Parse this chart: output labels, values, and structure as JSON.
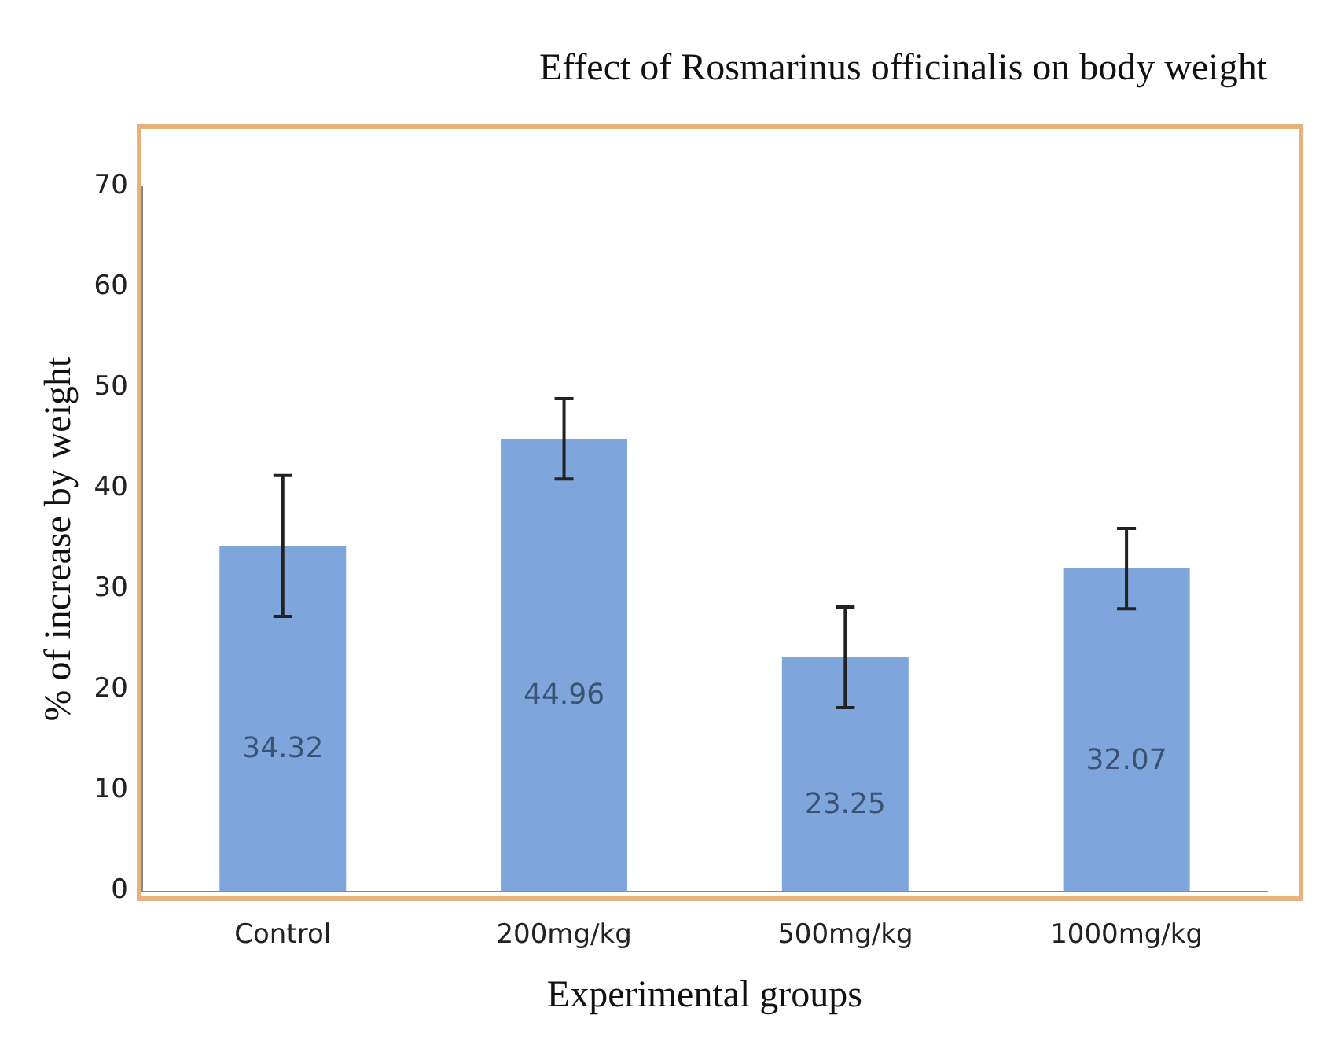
{
  "chart_data": {
    "type": "bar",
    "title": "Effect of Rosmarinus officinalis on body weight",
    "xlabel": "Experimental groups",
    "ylabel": "% of increase by weight",
    "categories": [
      "Control",
      "200mg/kg",
      "500mg/kg",
      "1000mg/kg"
    ],
    "values": [
      34.32,
      44.96,
      23.25,
      32.07
    ],
    "errors": [
      7,
      4,
      5,
      4
    ],
    "color": "#7ea6dc",
    "ylim": [
      0,
      70
    ],
    "yticks": [
      0,
      10,
      20,
      30,
      40,
      50,
      60,
      70
    ],
    "data_labels": true,
    "grid": false,
    "legend": false
  }
}
